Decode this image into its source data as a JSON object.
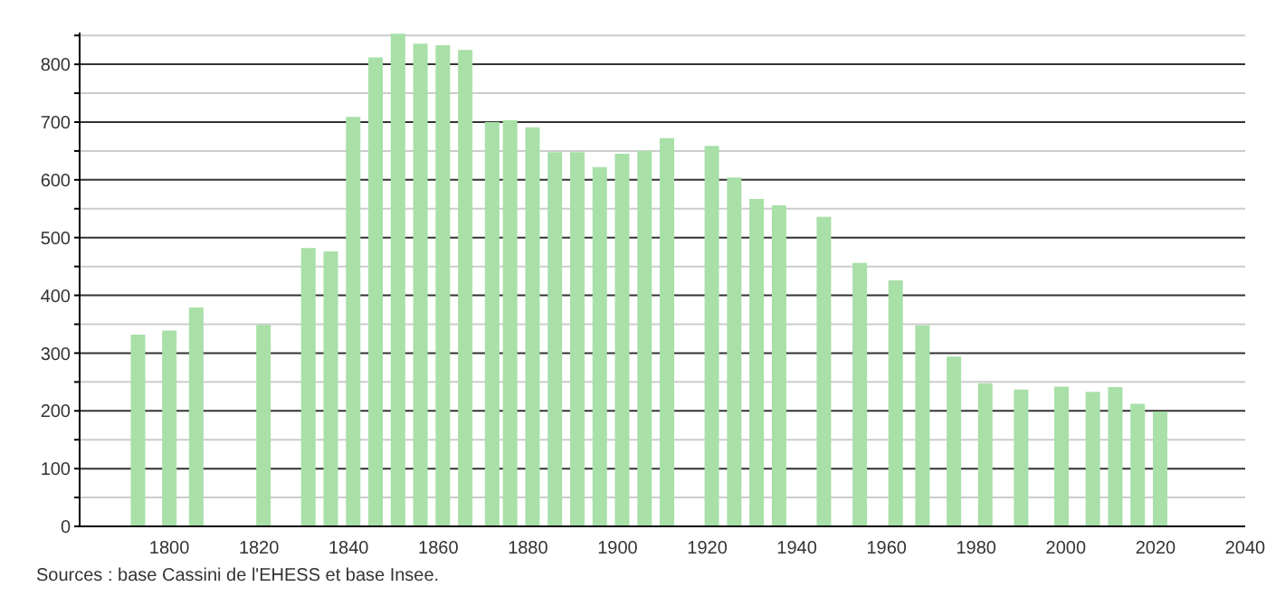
{
  "chart_data": {
    "type": "bar",
    "x": [
      1793,
      1800,
      1806,
      1821,
      1831,
      1836,
      1841,
      1846,
      1851,
      1856,
      1861,
      1866,
      1872,
      1876,
      1881,
      1886,
      1891,
      1896,
      1901,
      1906,
      1911,
      1921,
      1926,
      1931,
      1936,
      1946,
      1954,
      1962,
      1968,
      1975,
      1982,
      1990,
      1999,
      2006,
      2011,
      2016,
      2021
    ],
    "values": [
      332,
      339,
      379,
      349,
      482,
      476,
      709,
      812,
      853,
      836,
      833,
      825,
      700,
      703,
      691,
      648,
      648,
      622,
      645,
      650,
      672,
      659,
      604,
      567,
      556,
      536,
      456,
      426,
      348,
      294,
      248,
      237,
      242,
      233,
      241,
      212,
      199
    ],
    "color": "#a8e0a8",
    "xlim": [
      1780,
      2040
    ],
    "xticks": [
      1800,
      1820,
      1840,
      1860,
      1880,
      1900,
      1920,
      1940,
      1960,
      1980,
      2000,
      2020,
      2040
    ],
    "ylim": [
      0,
      855
    ],
    "yticks": [
      0,
      {
        "value": 50,
        "label": null
      },
      100,
      {
        "value": 150,
        "label": null
      },
      200,
      {
        "value": 250,
        "label": null
      },
      300,
      {
        "value": 350,
        "label": null
      },
      400,
      {
        "value": 450,
        "label": null
      },
      500,
      {
        "value": 550,
        "label": null
      },
      600,
      {
        "value": 650,
        "label": null
      },
      700,
      {
        "value": 750,
        "label": null
      },
      800,
      {
        "value": 850,
        "label": null
      }
    ],
    "grid": "y",
    "annotations": [
      "Sources : base Cassini de l'EHESS et base Insee."
    ]
  }
}
